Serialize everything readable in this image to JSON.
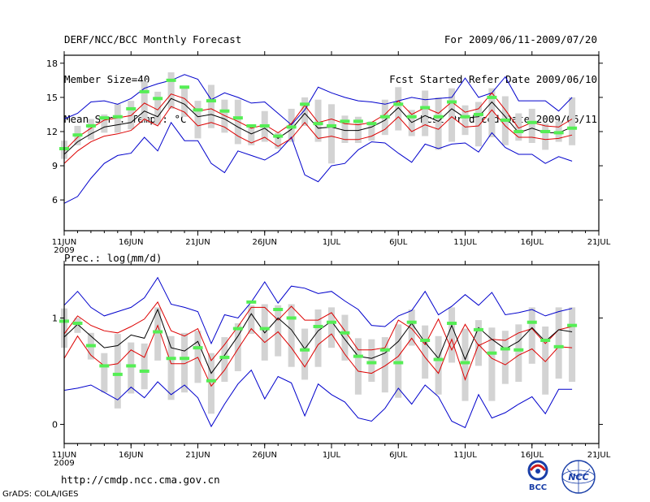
{
  "header": {
    "title": "DERF/NCC/BCC Monthly Forecast",
    "member_size": "Member Size=40",
    "variable": "Mean Surf. Temp.: °C",
    "period": "For 2009/06/11-2009/07/20",
    "started": "Fcst Started Refer Date 2009/06/10",
    "produced": "Fcst Produced Date 2009/06/11"
  },
  "footer": {
    "url": "http://cmdp.ncc.cma.gov.cn",
    "credit": "GrADS: COLA/IGES",
    "logo_left_text": "BCC",
    "logo_right_text": "NCC"
  },
  "colors": {
    "spread": "#0000cc",
    "percentile": "#dd0000",
    "mean": "#000000",
    "box": "#d3d3d3",
    "marker": "#55ee55"
  },
  "chart_data": [
    {
      "type": "line",
      "title": "Mean Surf. Temp.: °C",
      "x_start_day": 1,
      "x_tick_days": [
        1,
        6,
        11,
        16,
        21,
        26,
        31,
        36,
        41
      ],
      "x_tick_labels": [
        "11JUN",
        "16JUN",
        "21JUN",
        "26JUN",
        "1JUL",
        "6JUL",
        "11JUL",
        "16JUL",
        "21JUL"
      ],
      "x_year_label": "2009",
      "ylim": [
        3.3,
        18.7
      ],
      "y_ticks": [
        6,
        9,
        12,
        15,
        18
      ],
      "y_tick_labels": [
        "6",
        "9",
        "12",
        "15",
        "18"
      ],
      "series": [
        {
          "name": "max",
          "values": [
            13.1,
            13.6,
            14.6,
            14.7,
            14.4,
            14.9,
            15.8,
            16.2,
            16.5,
            17.0,
            16.6,
            14.8,
            15.4,
            15.0,
            14.5,
            14.6,
            13.6,
            12.6,
            13.9,
            15.9,
            15.4,
            15.0,
            14.7,
            14.6,
            14.4,
            14.7,
            15.0,
            14.8,
            14.9,
            15.0,
            16.7,
            15.0,
            15.4,
            16.8,
            14.7,
            14.7,
            14.7,
            13.8,
            15.0
          ]
        },
        {
          "name": "p90",
          "values": [
            10.3,
            11.5,
            12.3,
            13.0,
            13.2,
            13.4,
            14.5,
            13.9,
            15.3,
            14.9,
            13.8,
            14.0,
            13.4,
            12.9,
            12.3,
            12.6,
            11.9,
            12.7,
            14.3,
            12.8,
            13.1,
            12.7,
            12.6,
            12.8,
            13.5,
            14.7,
            13.5,
            14.1,
            13.6,
            14.6,
            13.7,
            14.0,
            15.4,
            13.9,
            12.3,
            12.8,
            12.5,
            12.4,
            13.1
          ]
        },
        {
          "name": "mean",
          "values": [
            10.0,
            11.1,
            11.8,
            12.4,
            12.6,
            12.8,
            13.8,
            13.3,
            14.9,
            14.4,
            13.3,
            13.5,
            13.1,
            12.4,
            11.8,
            12.3,
            11.4,
            12.2,
            13.6,
            12.3,
            12.4,
            12.1,
            12.1,
            12.4,
            13.0,
            14.1,
            12.8,
            13.4,
            12.9,
            14.0,
            13.2,
            13.3,
            14.6,
            13.3,
            11.9,
            12.3,
            11.9,
            11.9,
            12.4
          ]
        },
        {
          "name": "p10",
          "values": [
            9.2,
            10.3,
            11.1,
            11.6,
            11.8,
            12.1,
            13.1,
            12.5,
            14.2,
            13.7,
            12.5,
            12.8,
            12.4,
            11.6,
            11.0,
            11.5,
            10.7,
            11.4,
            12.8,
            11.4,
            11.6,
            11.3,
            11.3,
            11.6,
            12.2,
            13.3,
            12.0,
            12.6,
            12.2,
            13.3,
            12.4,
            12.5,
            13.9,
            12.5,
            11.5,
            11.5,
            11.3,
            11.4,
            11.7
          ]
        },
        {
          "name": "min",
          "values": [
            5.7,
            6.3,
            7.9,
            9.2,
            9.9,
            10.1,
            11.5,
            10.3,
            12.8,
            11.2,
            11.2,
            9.2,
            8.4,
            10.3,
            9.9,
            9.5,
            10.2,
            11.5,
            8.2,
            7.6,
            9.0,
            9.2,
            10.4,
            11.1,
            11.0,
            10.1,
            9.3,
            10.9,
            10.5,
            10.9,
            11.0,
            10.2,
            11.9,
            10.6,
            10.0,
            10.0,
            9.2,
            9.8,
            9.4
          ]
        },
        {
          "name": "box_low",
          "values": [
            9.6,
            10.8,
            11.3,
            11.9,
            11.9,
            12.2,
            13.0,
            12.6,
            14.0,
            13.3,
            11.4,
            12.3,
            11.9,
            10.9,
            10.8,
            11.1,
            10.5,
            11.1,
            12.5,
            11.1,
            9.2,
            11.0,
            11.0,
            11.2,
            11.7,
            12.1,
            11.6,
            11.6,
            10.4,
            11.1,
            11.7,
            10.7,
            11.5,
            10.8,
            11.2,
            11.0,
            10.4,
            11.1,
            10.8
          ]
        },
        {
          "name": "box_high",
          "values": [
            11.2,
            12.5,
            13.1,
            13.5,
            14.4,
            14.7,
            16.4,
            15.5,
            17.2,
            16.0,
            14.7,
            16.1,
            14.8,
            14.8,
            12.5,
            13.8,
            11.9,
            14.0,
            15.0,
            14.8,
            14.4,
            13.4,
            13.3,
            12.9,
            14.8,
            15.9,
            13.9,
            15.6,
            15.0,
            15.8,
            14.3,
            14.6,
            15.8,
            15.1,
            13.6,
            14.0,
            12.7,
            12.9,
            15.0
          ]
        },
        {
          "name": "marker",
          "values": [
            10.5,
            11.7,
            12.5,
            13.2,
            13.3,
            14.0,
            15.5,
            14.9,
            16.5,
            15.9,
            13.9,
            14.7,
            13.8,
            13.2,
            12.5,
            12.5,
            11.6,
            12.4,
            14.4,
            12.7,
            12.5,
            12.9,
            12.9,
            12.7,
            13.3,
            14.4,
            13.3,
            14.1,
            13.3,
            14.6,
            13.3,
            13.5,
            15.0,
            13.0,
            12.0,
            12.8,
            12.0,
            11.9,
            12.3
          ]
        }
      ]
    },
    {
      "type": "line",
      "title": "Prec.: log(mm/d)",
      "x_start_day": 1,
      "x_tick_days": [
        1,
        6,
        11,
        16,
        21,
        26,
        31,
        36,
        41
      ],
      "x_tick_labels": [
        "11JUN",
        "16JUN",
        "21JUN",
        "26JUN",
        "1JUL",
        "6JUL",
        "11JUL",
        "16JUL",
        "21JUL"
      ],
      "x_year_label": "2009",
      "ylim": [
        -0.18,
        1.5
      ],
      "y_ticks": [
        0,
        1
      ],
      "y_tick_labels": [
        "0",
        "1"
      ],
      "series": [
        {
          "name": "max",
          "values": [
            1.12,
            1.25,
            1.1,
            1.02,
            1.06,
            1.1,
            1.19,
            1.38,
            1.13,
            1.1,
            1.06,
            0.76,
            1.03,
            1.0,
            1.15,
            1.34,
            1.14,
            1.3,
            1.28,
            1.23,
            1.25,
            1.16,
            1.08,
            0.93,
            0.92,
            1.02,
            1.07,
            1.25,
            1.03,
            1.11,
            1.22,
            1.12,
            1.24,
            1.03,
            1.05,
            1.08,
            1.02,
            1.06,
            1.09
          ]
        },
        {
          "name": "p90",
          "values": [
            0.85,
            1.02,
            0.93,
            0.88,
            0.86,
            0.92,
            0.99,
            1.15,
            0.88,
            0.83,
            0.9,
            0.6,
            0.75,
            0.92,
            1.1,
            1.1,
            0.98,
            1.11,
            0.98,
            0.98,
            1.05,
            0.88,
            0.7,
            0.7,
            0.72,
            0.98,
            0.9,
            0.75,
            0.99,
            0.7,
            0.94,
            0.74,
            0.8,
            0.79,
            0.86,
            0.9,
            0.76,
            0.89,
            0.92
          ]
        },
        {
          "name": "mean",
          "values": [
            0.82,
            0.94,
            0.83,
            0.72,
            0.74,
            0.84,
            0.81,
            1.08,
            0.72,
            0.69,
            0.78,
            0.48,
            0.65,
            0.83,
            1.04,
            0.86,
            1.0,
            0.89,
            0.71,
            0.88,
            0.97,
            0.8,
            0.64,
            0.62,
            0.67,
            0.78,
            0.95,
            0.77,
            0.62,
            0.93,
            0.61,
            0.91,
            0.8,
            0.71,
            0.78,
            0.91,
            0.78,
            0.89,
            0.87
          ]
        },
        {
          "name": "p10",
          "values": [
            0.62,
            0.83,
            0.65,
            0.55,
            0.57,
            0.7,
            0.63,
            0.93,
            0.57,
            0.57,
            0.63,
            0.36,
            0.51,
            0.71,
            0.9,
            0.77,
            0.87,
            0.72,
            0.54,
            0.75,
            0.85,
            0.66,
            0.5,
            0.48,
            0.55,
            0.64,
            0.81,
            0.63,
            0.48,
            0.8,
            0.42,
            0.75,
            0.62,
            0.56,
            0.65,
            0.71,
            0.59,
            0.73,
            0.72
          ]
        },
        {
          "name": "min",
          "values": [
            0.32,
            0.34,
            0.37,
            0.3,
            0.23,
            0.35,
            0.25,
            0.4,
            0.28,
            0.37,
            0.25,
            -0.02,
            0.19,
            0.38,
            0.51,
            0.24,
            0.45,
            0.39,
            0.08,
            0.38,
            0.28,
            0.21,
            0.06,
            0.03,
            0.15,
            0.34,
            0.19,
            0.37,
            0.26,
            0.03,
            -0.03,
            0.28,
            0.06,
            0.11,
            0.19,
            0.26,
            0.1,
            0.33,
            0.33
          ]
        },
        {
          "name": "box_low",
          "values": [
            0.72,
            0.86,
            0.61,
            0.3,
            0.15,
            0.29,
            0.33,
            0.6,
            0.23,
            0.3,
            0.39,
            0.1,
            0.4,
            0.5,
            0.85,
            0.6,
            0.64,
            0.54,
            0.42,
            0.54,
            0.72,
            0.6,
            0.28,
            0.4,
            0.3,
            0.25,
            0.74,
            0.43,
            0.28,
            0.58,
            0.22,
            0.55,
            0.22,
            0.38,
            0.4,
            0.57,
            0.28,
            0.43,
            0.4
          ]
        },
        {
          "name": "box_high",
          "values": [
            1.09,
            1.0,
            0.86,
            0.67,
            0.85,
            0.77,
            0.76,
            1.1,
            0.83,
            0.86,
            0.88,
            0.67,
            0.82,
            0.95,
            1.12,
            1.13,
            1.12,
            1.13,
            0.9,
            1.08,
            1.1,
            1.03,
            0.81,
            0.8,
            0.82,
            0.94,
            1.08,
            0.93,
            0.83,
            1.1,
            0.9,
            0.98,
            0.91,
            0.88,
            0.94,
            1.1,
            0.92,
            1.1,
            1.1
          ]
        },
        {
          "name": "marker",
          "values": [
            0.97,
            0.95,
            0.74,
            0.55,
            0.47,
            0.55,
            0.5,
            0.87,
            0.62,
            0.62,
            0.72,
            0.41,
            0.63,
            0.9,
            1.15,
            0.9,
            1.08,
            1.0,
            0.7,
            0.92,
            0.96,
            0.86,
            0.64,
            0.58,
            0.7,
            0.58,
            0.96,
            0.79,
            0.61,
            0.95,
            0.58,
            0.89,
            0.67,
            0.71,
            0.7,
            0.96,
            0.79,
            0.73,
            0.93
          ]
        }
      ]
    }
  ]
}
